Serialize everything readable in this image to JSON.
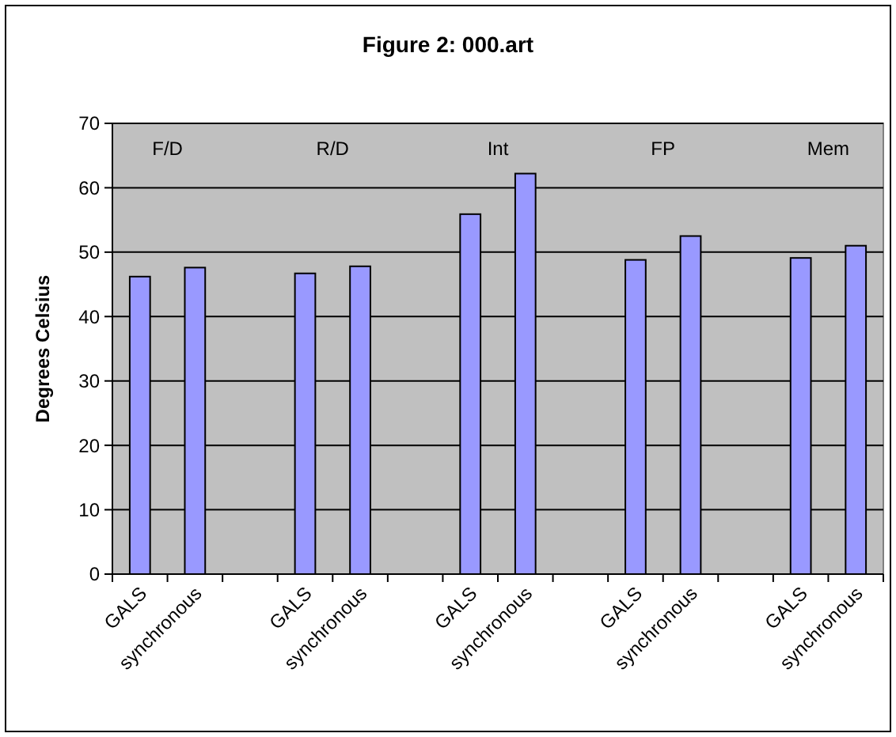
{
  "chart_data": {
    "type": "bar",
    "title": "Figure 2: 000.art",
    "ylabel": "Degrees Celsius",
    "categories": [
      "GALS",
      "synchronous",
      null,
      "GALS",
      "synchronous",
      null,
      "GALS",
      "synchronous",
      null,
      "GALS",
      "synchronous",
      null,
      "GALS",
      "synchronous"
    ],
    "values": [
      46.2,
      47.6,
      null,
      46.7,
      47.8,
      null,
      55.9,
      62.2,
      null,
      48.8,
      52.5,
      null,
      49.1,
      51.0
    ],
    "color": "#9999ff",
    "ylim": [
      0,
      70
    ],
    "yticks": [
      0,
      10,
      20,
      30,
      40,
      50,
      60,
      70
    ],
    "grid": "y",
    "annotations": [
      "F/D",
      "R/D",
      "Int",
      "FP",
      "Mem"
    ]
  }
}
